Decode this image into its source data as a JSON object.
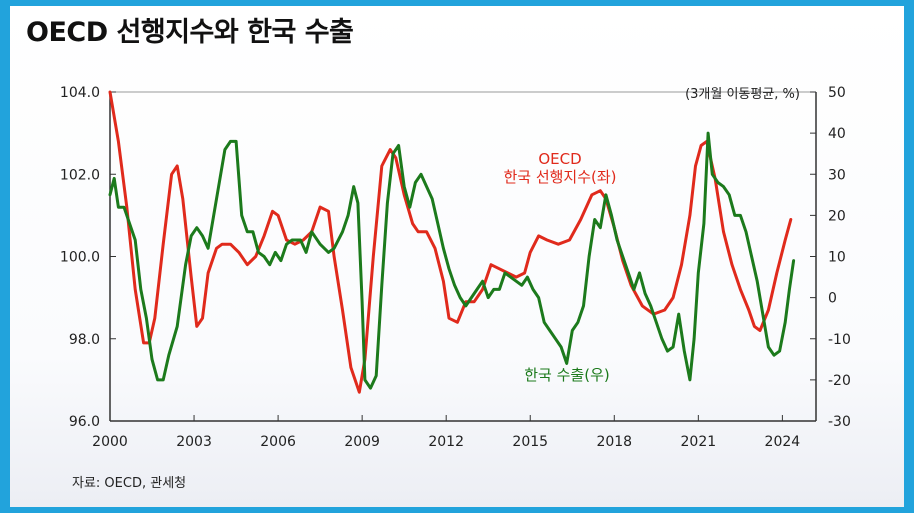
{
  "title": "OECD 선행지수와 한국 수출",
  "source": "자료: OECD, 관세청",
  "colors": {
    "oecd": "#e02a1c",
    "exports": "#1c7a1c",
    "background": "#22a3dc"
  },
  "chart_data": {
    "type": "line",
    "unit_note": "(3개월 이동평균, %)",
    "x_ticks": [
      "2000",
      "2003",
      "2006",
      "2009",
      "2012",
      "2015",
      "2018",
      "2021",
      "2024"
    ],
    "xlim": [
      2000,
      2025.2
    ],
    "y_left": {
      "ylim": [
        96,
        104
      ],
      "ticks": [
        "104.0",
        "102.0",
        "100.0",
        "98.0",
        "96.0"
      ]
    },
    "y_right": {
      "ylim": [
        -30,
        50
      ],
      "ticks": [
        "50",
        "40",
        "30",
        "20",
        "10",
        "0",
        "-10",
        "-20",
        "-30"
      ]
    },
    "grid": false,
    "series": [
      {
        "id": "oecd",
        "label_lines": [
          "OECD",
          "한국 선행지수(좌)"
        ],
        "axis": "left",
        "color": "#e02a1c",
        "x": [
          2000.0,
          2000.3,
          2000.6,
          2000.9,
          2001.2,
          2001.4,
          2001.6,
          2001.9,
          2002.2,
          2002.4,
          2002.6,
          2002.9,
          2003.1,
          2003.3,
          2003.5,
          2003.8,
          2004.0,
          2004.3,
          2004.6,
          2004.9,
          2005.2,
          2005.5,
          2005.8,
          2006.0,
          2006.3,
          2006.6,
          2006.9,
          2007.2,
          2007.5,
          2007.8,
          2008.0,
          2008.3,
          2008.6,
          2008.9,
          2009.1,
          2009.4,
          2009.7,
          2010.0,
          2010.2,
          2010.5,
          2010.8,
          2011.0,
          2011.3,
          2011.6,
          2011.9,
          2012.1,
          2012.4,
          2012.7,
          2013.0,
          2013.3,
          2013.6,
          2013.9,
          2014.2,
          2014.5,
          2014.8,
          2015.0,
          2015.3,
          2015.6,
          2016.0,
          2016.4,
          2016.8,
          2017.2,
          2017.5,
          2017.7,
          2018.0,
          2018.3,
          2018.6,
          2019.0,
          2019.4,
          2019.8,
          2020.1,
          2020.4,
          2020.7,
          2020.9,
          2021.1,
          2021.3,
          2021.6,
          2021.9,
          2022.2,
          2022.5,
          2022.8,
          2023.0,
          2023.2,
          2023.5,
          2023.8,
          2024.1,
          2024.3
        ],
        "values": [
          104.0,
          102.8,
          101.2,
          99.2,
          97.9,
          97.9,
          98.5,
          100.3,
          102.0,
          102.2,
          101.4,
          99.5,
          98.3,
          98.5,
          99.6,
          100.2,
          100.3,
          100.3,
          100.1,
          99.8,
          100.0,
          100.5,
          101.1,
          101.0,
          100.4,
          100.3,
          100.4,
          100.6,
          101.2,
          101.1,
          100.0,
          98.7,
          97.3,
          96.7,
          97.5,
          100.0,
          102.2,
          102.6,
          102.4,
          101.5,
          100.8,
          100.6,
          100.6,
          100.2,
          99.4,
          98.5,
          98.4,
          98.9,
          98.9,
          99.2,
          99.8,
          99.7,
          99.6,
          99.5,
          99.6,
          100.1,
          100.5,
          100.4,
          100.3,
          100.4,
          100.9,
          101.5,
          101.6,
          101.4,
          100.7,
          99.9,
          99.3,
          98.8,
          98.6,
          98.7,
          99.0,
          99.8,
          101.0,
          102.2,
          102.7,
          102.8,
          101.9,
          100.6,
          99.8,
          99.2,
          98.7,
          98.3,
          98.2,
          98.7,
          99.6,
          100.4,
          100.9
        ]
      },
      {
        "id": "exports",
        "label": "한국 수출(우)",
        "axis": "right",
        "color": "#1c7a1c",
        "x": [
          2000.0,
          2000.15,
          2000.3,
          2000.5,
          2000.7,
          2000.9,
          2001.1,
          2001.3,
          2001.5,
          2001.7,
          2001.9,
          2002.1,
          2002.4,
          2002.7,
          2002.9,
          2003.1,
          2003.3,
          2003.5,
          2003.7,
          2003.9,
          2004.1,
          2004.3,
          2004.5,
          2004.7,
          2004.9,
          2005.1,
          2005.3,
          2005.5,
          2005.7,
          2005.9,
          2006.1,
          2006.3,
          2006.5,
          2006.8,
          2007.0,
          2007.2,
          2007.5,
          2007.8,
          2008.0,
          2008.3,
          2008.5,
          2008.7,
          2008.85,
          2009.0,
          2009.1,
          2009.3,
          2009.5,
          2009.7,
          2009.9,
          2010.1,
          2010.3,
          2010.5,
          2010.7,
          2010.9,
          2011.1,
          2011.3,
          2011.5,
          2011.7,
          2011.9,
          2012.1,
          2012.3,
          2012.5,
          2012.7,
          2012.9,
          2013.1,
          2013.3,
          2013.5,
          2013.7,
          2013.9,
          2014.1,
          2014.3,
          2014.5,
          2014.7,
          2014.9,
          2015.1,
          2015.3,
          2015.5,
          2015.7,
          2015.9,
          2016.1,
          2016.3,
          2016.5,
          2016.7,
          2016.9,
          2017.1,
          2017.3,
          2017.5,
          2017.7,
          2017.9,
          2018.1,
          2018.3,
          2018.5,
          2018.7,
          2018.9,
          2019.1,
          2019.3,
          2019.5,
          2019.7,
          2019.9,
          2020.1,
          2020.3,
          2020.5,
          2020.7,
          2020.85,
          2021.0,
          2021.2,
          2021.35,
          2021.5,
          2021.7,
          2021.9,
          2022.1,
          2022.3,
          2022.5,
          2022.7,
          2022.9,
          2023.1,
          2023.3,
          2023.5,
          2023.7,
          2023.9,
          2024.1,
          2024.25,
          2024.4
        ],
        "values": [
          25,
          29,
          22,
          22,
          18,
          14,
          2,
          -5,
          -15,
          -20,
          -20,
          -14,
          -7,
          8,
          15,
          17,
          15,
          12,
          20,
          28,
          36,
          38,
          38,
          20,
          16,
          16,
          11,
          10,
          8,
          11,
          9,
          13,
          14,
          14,
          11,
          16,
          13,
          11,
          12,
          16,
          20,
          27,
          23,
          -1,
          -20,
          -22,
          -19,
          3,
          23,
          35,
          37,
          27,
          22,
          28,
          30,
          27,
          24,
          18,
          12,
          7,
          3,
          0,
          -2,
          0,
          2,
          4,
          0,
          2,
          2,
          6,
          5,
          4,
          3,
          5,
          2,
          0,
          -6,
          -8,
          -10,
          -12,
          -16,
          -8,
          -6,
          -2,
          10,
          19,
          17,
          25,
          20,
          14,
          10,
          6,
          2,
          6,
          1,
          -2,
          -6,
          -10,
          -13,
          -12,
          -4,
          -13,
          -20,
          -10,
          6,
          18,
          40,
          30,
          28,
          27,
          25,
          20,
          20,
          16,
          10,
          4,
          -4,
          -12,
          -14,
          -13,
          -6,
          2,
          9
        ]
      }
    ]
  }
}
